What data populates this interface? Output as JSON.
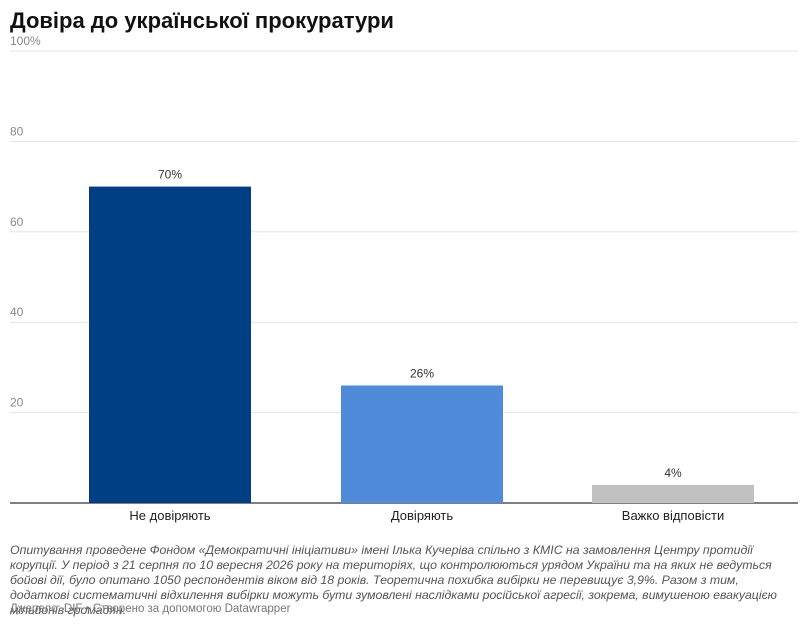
{
  "header": {
    "title": "Довіра до української прокуратури"
  },
  "chart_data": {
    "type": "bar",
    "title": "Довіра до української прокуратури",
    "xlabel": "",
    "ylabel": "",
    "ylim": [
      0,
      100
    ],
    "yticks": [
      "20",
      "40",
      "60",
      "80",
      "100%"
    ],
    "grid": true,
    "categories": [
      "Не довіряють",
      "Довіряють",
      "Важко відповісти"
    ],
    "values": [
      70,
      26,
      4
    ],
    "labels": [
      "70%",
      "26%",
      "4%"
    ],
    "colors": [
      "#003f84",
      "#4f8bd9",
      "#c1c1c1"
    ]
  },
  "footer": {
    "notes": "Опитування проведене Фондом «Демократичні ініціативи» імені Ілька Кучеріва спільно з КМІС на замовлення Центру протидії корупції. У період з 21 серпня по 10 вересня 2026 року на територіях, що контролюються урядом України та на яких не ведуться бойові дії, було опитано 1050 респондентів віком від 18 років. Теоретична похибка вибірки не перевищує 3,9%. Разом з тим, додаткові систематичні відхилення вибірки можуть бути зумовлені наслідками російської агресії, зокрема, вимушеною евакуацією мільйонів громадян.",
    "source": "Джерело: DIF • Створено за допомогою Datawrapper"
  }
}
